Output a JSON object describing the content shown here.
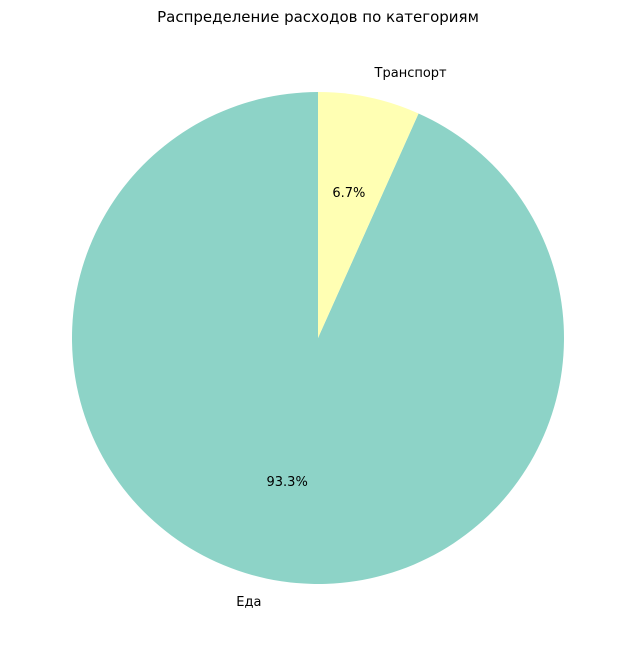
{
  "chart_data": {
    "type": "pie",
    "title": "Распределение расходов по категориям",
    "slices": [
      {
        "label": "Еда",
        "percent": 93.3,
        "pct_label": "93.3%",
        "color": "#8dd3c7"
      },
      {
        "label": "Транспорт",
        "percent": 6.7,
        "pct_label": "6.7%",
        "color": "#ffffb3"
      }
    ],
    "start_angle_deg": 90,
    "direction": "counterclockwise"
  }
}
